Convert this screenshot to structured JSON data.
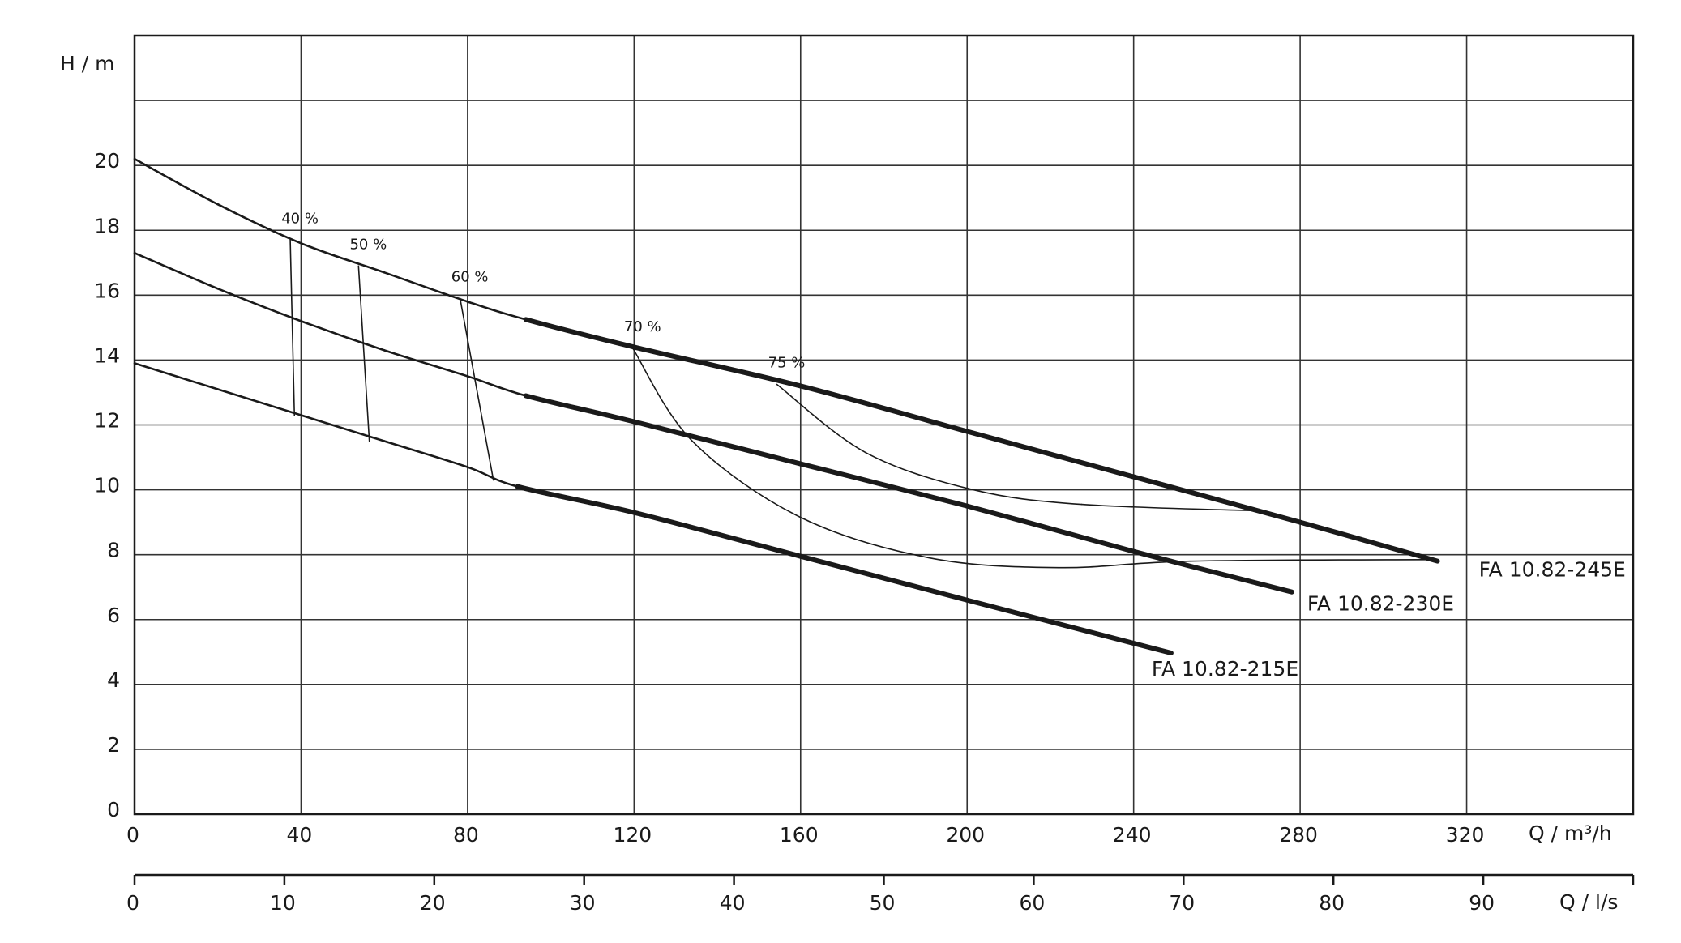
{
  "chart_data": {
    "type": "line",
    "y_label": "H  / m",
    "x_label": "Q  / m³/h",
    "x2_label": "Q  / l/s",
    "xlim": [
      0,
      360
    ],
    "xticks": [
      0,
      40,
      80,
      120,
      160,
      200,
      240,
      280,
      320
    ],
    "ylim": [
      0,
      24
    ],
    "yticks": [
      0,
      2,
      4,
      6,
      8,
      10,
      12,
      14,
      16,
      18,
      20,
      {
        "value": 22,
        "label": null
      }
    ],
    "x2lim": [
      0,
      100
    ],
    "x2ticks": [
      0,
      10,
      20,
      30,
      40,
      50,
      60,
      70,
      80,
      90,
      {
        "value": 100,
        "label": null
      }
    ],
    "grid": true,
    "color": "#1a1a1a",
    "series": [
      {
        "name": "FA 10.82-245E",
        "color": "#1a1a1a",
        "thick_start": 94,
        "x": [
          0,
          20,
          40,
          60,
          80,
          94,
          120,
          160,
          200,
          240,
          280,
          313
        ],
        "values": [
          20.2,
          18.8,
          17.6,
          16.7,
          15.8,
          15.25,
          14.4,
          13.2,
          11.8,
          10.4,
          9.0,
          7.8
        ]
      },
      {
        "name": "FA 10.82-230E",
        "color": "#1a1a1a",
        "thick_start": 94,
        "x": [
          0,
          20,
          40,
          60,
          80,
          94,
          120,
          160,
          200,
          240,
          278
        ],
        "values": [
          17.3,
          16.2,
          15.2,
          14.3,
          13.5,
          12.9,
          12.1,
          10.8,
          9.5,
          8.1,
          6.85
        ]
      },
      {
        "name": "FA 10.82-215E",
        "color": "#1a1a1a",
        "thick_start": 92,
        "x": [
          0,
          20,
          40,
          60,
          80,
          92,
          120,
          160,
          200,
          249
        ],
        "values": [
          13.9,
          13.1,
          12.3,
          11.5,
          10.7,
          10.1,
          9.3,
          7.95,
          6.6,
          4.97
        ]
      }
    ],
    "efficiency_lines": [
      {
        "label": "40 %",
        "x": [
          37.4,
          38.4
        ],
        "values": [
          17.7,
          12.3
        ]
      },
      {
        "label": "50 %",
        "x": [
          53.8,
          56.4
        ],
        "values": [
          16.9,
          11.5
        ]
      },
      {
        "label": "60 %",
        "x": [
          78.2,
          86.2
        ],
        "values": [
          15.9,
          10.3
        ]
      },
      {
        "label": "70 %",
        "x": [
          119.7,
          134,
          160,
          191,
          222,
          253.5,
          312.7
        ],
        "values": [
          14.36,
          11.5,
          9.15,
          7.9,
          7.6,
          7.8,
          7.85
        ]
      },
      {
        "label": "75 %",
        "x": [
          154.3,
          175.6,
          201.5,
          227.5,
          270.4
        ],
        "values": [
          13.25,
          11.15,
          10.0,
          9.55,
          9.35
        ]
      }
    ]
  }
}
